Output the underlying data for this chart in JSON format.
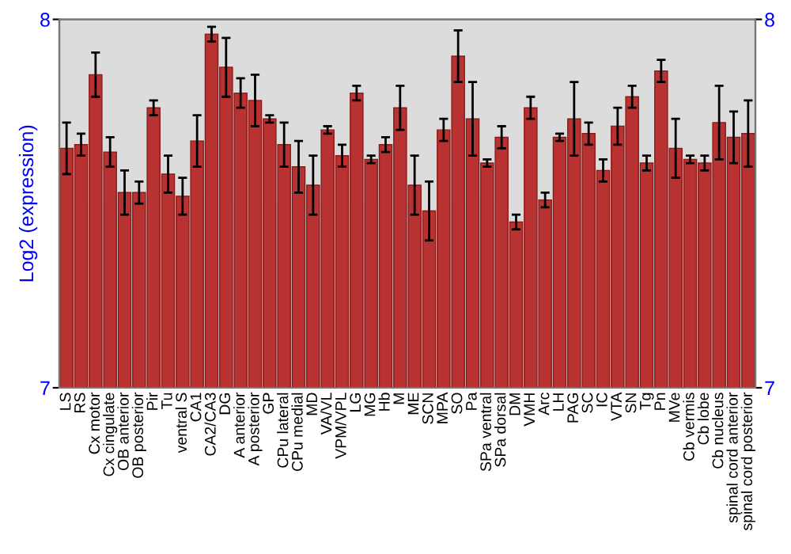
{
  "chart_data": {
    "type": "bar",
    "ylabel": "Log2 (expression)",
    "categories": [
      "LS",
      "RS",
      "Cx motor",
      "Cx cingulate",
      "OB anterior",
      "OB posterior",
      "Pir",
      "Tu",
      "ventral S",
      "CA1",
      "CA2/CA3",
      "DG",
      "A anterior",
      "A posterior",
      "GP",
      "CPu lateral",
      "CPu medial",
      "MD",
      "VA/VL",
      "VPM/VPL",
      "LG",
      "MG",
      "Hb",
      "M",
      "ME",
      "SCN",
      "MPA",
      "SO",
      "Pa",
      "SPa ventral",
      "SPa dorsal",
      "DM",
      "VMH",
      "Arc",
      "LH",
      "PAG",
      "SC",
      "IC",
      "VTA",
      "SN",
      "Tg",
      "Pn",
      "MVe",
      "Cb vermis",
      "Cb lobe",
      "Cb nucleus",
      "spinal cord anterior",
      "spinal cord posterior"
    ],
    "values": [
      7.65,
      7.66,
      7.85,
      7.64,
      7.53,
      7.53,
      7.76,
      7.58,
      7.52,
      7.67,
      7.96,
      7.87,
      7.8,
      7.78,
      7.73,
      7.66,
      7.6,
      7.55,
      7.7,
      7.63,
      7.8,
      7.62,
      7.66,
      7.76,
      7.55,
      7.48,
      7.7,
      7.9,
      7.73,
      7.61,
      7.68,
      7.45,
      7.76,
      7.51,
      7.68,
      7.73,
      7.69,
      7.59,
      7.71,
      7.79,
      7.61,
      7.86,
      7.65,
      7.62,
      7.61,
      7.72,
      7.68,
      7.69
    ],
    "errors": [
      0.07,
      0.03,
      0.06,
      0.04,
      0.06,
      0.03,
      0.02,
      0.05,
      0.05,
      0.07,
      0.02,
      0.08,
      0.04,
      0.07,
      0.01,
      0.06,
      0.07,
      0.08,
      0.01,
      0.03,
      0.02,
      0.01,
      0.02,
      0.06,
      0.08,
      0.08,
      0.03,
      0.07,
      0.1,
      0.01,
      0.03,
      0.02,
      0.03,
      0.02,
      0.01,
      0.1,
      0.03,
      0.03,
      0.05,
      0.03,
      0.02,
      0.03,
      0.08,
      0.01,
      0.02,
      0.1,
      0.07,
      0.09
    ],
    "color": "#b83232",
    "ylim": [
      7,
      8
    ],
    "yticks": [
      7,
      8
    ],
    "y2lim": [
      7,
      8
    ],
    "y2ticks": [
      7,
      8
    ],
    "grid": false
  }
}
